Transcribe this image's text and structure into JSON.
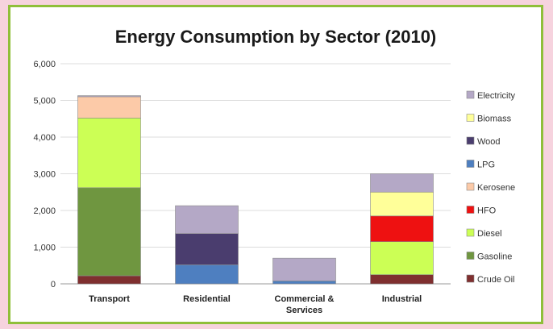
{
  "chart_data": {
    "type": "bar",
    "stacked": true,
    "title": "Energy Consumption by Sector (2010)",
    "xlabel": "",
    "ylabel": "",
    "ylim": [
      0,
      6000
    ],
    "yticks": [
      "0",
      "1,000",
      "2,000",
      "3,000",
      "4,000",
      "5,000",
      "6,000"
    ],
    "ytick_values": [
      0,
      1000,
      2000,
      3000,
      4000,
      5000,
      6000
    ],
    "grid": true,
    "legend_position": "right",
    "categories": [
      [
        "Transport"
      ],
      [
        "Residential"
      ],
      [
        "Commercial &",
        "Services"
      ],
      [
        "Industrial"
      ]
    ],
    "series": [
      {
        "name": "Crude Oil",
        "color": "#7f2f2f",
        "values": [
          220,
          0,
          0,
          250
        ]
      },
      {
        "name": "Gasoline",
        "color": "#6f9640",
        "values": [
          2400,
          0,
          0,
          0
        ]
      },
      {
        "name": "Diesel",
        "color": "#ccff55",
        "values": [
          1900,
          0,
          0,
          900
        ]
      },
      {
        "name": "HFO",
        "color": "#ee1111",
        "values": [
          0,
          0,
          0,
          700
        ]
      },
      {
        "name": "Kerosene",
        "color": "#fccaa8",
        "values": [
          580,
          0,
          0,
          0
        ]
      },
      {
        "name": "LPG",
        "color": "#4e7fc0",
        "values": [
          0,
          520,
          80,
          0
        ]
      },
      {
        "name": "Wood",
        "color": "#4a3d6e",
        "values": [
          0,
          850,
          0,
          0
        ]
      },
      {
        "name": "Biomass",
        "color": "#ffff99",
        "values": [
          0,
          0,
          0,
          650
        ]
      },
      {
        "name": "Electricity",
        "color": "#b4a8c6",
        "values": [
          30,
          760,
          620,
          500
        ]
      }
    ],
    "legend_order": [
      "Electricity",
      "Biomass",
      "Wood",
      "LPG",
      "Kerosene",
      "HFO",
      "Diesel",
      "Gasoline",
      "Crude Oil"
    ]
  }
}
